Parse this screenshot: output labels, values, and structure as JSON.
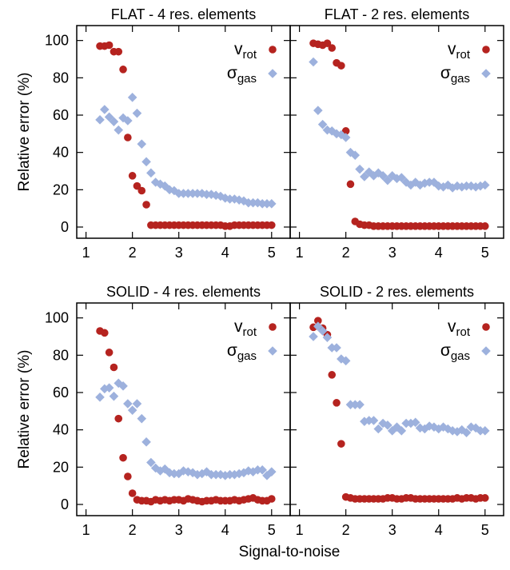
{
  "figure": {
    "xlabel": "Signal-to-noise",
    "ylabel": "Relative error (%)",
    "colors": {
      "v_rot": "#b5231f",
      "sigma_gas": "#9db1dd"
    }
  },
  "chart_data": [
    {
      "type": "scatter",
      "title": "FLAT - 4 res. elements",
      "xlabel": "Signal-to-noise",
      "ylabel": "Relative error (%)",
      "xlim": [
        0.8,
        5.4
      ],
      "ylim": [
        -6,
        108
      ],
      "xticks": [
        1,
        2,
        3,
        4,
        5
      ],
      "yticks": [
        0,
        20,
        40,
        60,
        80,
        100
      ],
      "grid": false,
      "legend": "top-right",
      "x": [
        1.3,
        1.4,
        1.5,
        1.6,
        1.7,
        1.8,
        1.9,
        2.0,
        2.1,
        2.2,
        2.3,
        2.4,
        2.5,
        2.6,
        2.7,
        2.8,
        2.9,
        3.0,
        3.1,
        3.2,
        3.3,
        3.4,
        3.5,
        3.6,
        3.7,
        3.8,
        3.9,
        4.0,
        4.1,
        4.2,
        4.3,
        4.4,
        4.5,
        4.6,
        4.7,
        4.8,
        4.9,
        5.0
      ],
      "series": [
        {
          "name": "v",
          "subscript": "rot",
          "marker": "circle",
          "values": [
            97,
            97,
            97.5,
            94,
            94,
            84.5,
            48,
            27.5,
            22,
            19.5,
            12,
            1,
            1,
            1,
            1,
            1,
            1,
            1,
            1,
            1,
            1,
            1,
            1,
            1,
            1,
            1,
            1,
            0.5,
            0.5,
            1,
            1,
            1,
            1,
            1,
            1,
            1,
            1,
            1
          ]
        },
        {
          "name": "σ",
          "subscript": "gas",
          "marker": "diamond",
          "values": [
            57.5,
            63,
            59,
            56.5,
            52,
            58.5,
            57,
            69.5,
            61,
            44.5,
            35,
            29,
            24,
            23,
            22,
            20,
            19.5,
            18,
            18,
            18,
            18,
            18,
            18,
            17.5,
            17.5,
            17,
            16.5,
            15.5,
            15,
            15,
            14.5,
            14,
            13,
            13,
            13,
            12.5,
            12.5,
            12.5
          ]
        }
      ]
    },
    {
      "type": "scatter",
      "title": "FLAT - 2 res. elements",
      "xlabel": "Signal-to-noise",
      "ylabel": "",
      "xlim": [
        0.8,
        5.4
      ],
      "ylim": [
        -6,
        108
      ],
      "xticks": [
        1,
        2,
        3,
        4,
        5
      ],
      "grid": false,
      "legend": "top-right",
      "x": [
        1.3,
        1.4,
        1.5,
        1.6,
        1.7,
        1.8,
        1.9,
        2.0,
        2.1,
        2.2,
        2.3,
        2.4,
        2.5,
        2.6,
        2.7,
        2.8,
        2.9,
        3.0,
        3.1,
        3.2,
        3.3,
        3.4,
        3.5,
        3.6,
        3.7,
        3.8,
        3.9,
        4.0,
        4.1,
        4.2,
        4.3,
        4.4,
        4.5,
        4.6,
        4.7,
        4.8,
        4.9,
        5.0
      ],
      "series": [
        {
          "name": "v",
          "subscript": "rot",
          "marker": "circle",
          "values": [
            98.5,
            98,
            97.5,
            98.5,
            96,
            88,
            86.5,
            51.5,
            23,
            3,
            1.5,
            1,
            1,
            0.5,
            0.5,
            0.5,
            0.5,
            0.5,
            0.5,
            0.5,
            0.5,
            0.5,
            0.5,
            0.5,
            0.5,
            0.5,
            0.5,
            0.5,
            0.5,
            0.5,
            0.5,
            0.5,
            0.5,
            0.5,
            0.5,
            0.5,
            0.5,
            0.5
          ]
        },
        {
          "name": "σ",
          "subscript": "gas",
          "marker": "diamond",
          "values": [
            88.5,
            62.5,
            55,
            52,
            51.5,
            50,
            49.5,
            48,
            40,
            38.5,
            31,
            27,
            29.5,
            27.5,
            29,
            27.5,
            25,
            27.5,
            26,
            26.5,
            24,
            22.5,
            24,
            22.5,
            23.5,
            24,
            24,
            22,
            21.5,
            22.5,
            21,
            22,
            21.5,
            22,
            22,
            21.5,
            22,
            22.5
          ]
        }
      ]
    },
    {
      "type": "scatter",
      "title": "SOLID - 4 res. elements",
      "xlabel": "Signal-to-noise",
      "ylabel": "Relative error (%)",
      "xlim": [
        0.8,
        5.4
      ],
      "ylim": [
        -6,
        108
      ],
      "xticks": [
        1,
        2,
        3,
        4,
        5
      ],
      "yticks": [
        0,
        20,
        40,
        60,
        80,
        100
      ],
      "grid": false,
      "legend": "top-right",
      "x": [
        1.3,
        1.4,
        1.5,
        1.6,
        1.7,
        1.8,
        1.9,
        2.0,
        2.1,
        2.2,
        2.3,
        2.4,
        2.5,
        2.6,
        2.7,
        2.8,
        2.9,
        3.0,
        3.1,
        3.2,
        3.3,
        3.4,
        3.5,
        3.6,
        3.7,
        3.8,
        3.9,
        4.0,
        4.1,
        4.2,
        4.3,
        4.4,
        4.5,
        4.6,
        4.7,
        4.8,
        4.9,
        5.0
      ],
      "series": [
        {
          "name": "v",
          "subscript": "rot",
          "marker": "circle",
          "values": [
            93,
            92,
            81.5,
            73.5,
            46,
            25,
            15,
            6,
            2.5,
            2,
            2,
            1.5,
            2.5,
            2,
            2.5,
            2,
            2.5,
            2.5,
            2,
            3,
            2.5,
            2,
            1.5,
            2,
            2,
            2.5,
            2,
            2,
            2,
            2.5,
            2,
            2.5,
            3,
            3.5,
            2.5,
            2,
            2,
            3
          ]
        },
        {
          "name": "σ",
          "subscript": "gas",
          "marker": "diamond",
          "values": [
            57.5,
            62,
            62.5,
            58,
            65,
            63.5,
            54,
            50.5,
            54,
            46,
            33.5,
            22.5,
            19.5,
            18,
            19,
            17,
            16.5,
            16.5,
            18,
            17.5,
            17,
            16,
            16.5,
            17.5,
            16,
            16,
            16,
            15.5,
            16,
            16,
            16.5,
            17,
            18,
            17.5,
            18.5,
            18.5,
            15.5,
            17.5
          ]
        }
      ]
    },
    {
      "type": "scatter",
      "title": "SOLID - 2 res. elements",
      "xlabel": "Signal-to-noise",
      "ylabel": "",
      "xlim": [
        0.8,
        5.4
      ],
      "ylim": [
        -6,
        108
      ],
      "xticks": [
        1,
        2,
        3,
        4,
        5
      ],
      "grid": false,
      "legend": "top-right",
      "x": [
        1.3,
        1.4,
        1.5,
        1.6,
        1.7,
        1.8,
        1.9,
        2.0,
        2.1,
        2.2,
        2.3,
        2.4,
        2.5,
        2.6,
        2.7,
        2.8,
        2.9,
        3.0,
        3.1,
        3.2,
        3.3,
        3.4,
        3.5,
        3.6,
        3.7,
        3.8,
        3.9,
        4.0,
        4.1,
        4.2,
        4.3,
        4.4,
        4.5,
        4.6,
        4.7,
        4.8,
        4.9,
        5.0
      ],
      "series": [
        {
          "name": "v",
          "subscript": "rot",
          "marker": "circle",
          "values": [
            95,
            98.5,
            94.5,
            91,
            69.5,
            54.5,
            32.5,
            4,
            3.5,
            3,
            3,
            3,
            3,
            3,
            3,
            3,
            3.5,
            3.5,
            3,
            3,
            3.5,
            3.5,
            3,
            3,
            3,
            3,
            3,
            3,
            3,
            3,
            3,
            3.5,
            3,
            3.5,
            3.5,
            3,
            3.5,
            3.5
          ]
        },
        {
          "name": "σ",
          "subscript": "gas",
          "marker": "diamond",
          "values": [
            90,
            95.5,
            93,
            89.5,
            84,
            84,
            78,
            77,
            53.5,
            53.5,
            53.5,
            44.5,
            45,
            45,
            40.5,
            43.5,
            42.5,
            39.5,
            41.5,
            39.5,
            43.5,
            43.5,
            44,
            41,
            40.5,
            42,
            41.5,
            40.5,
            41.5,
            40.5,
            39.5,
            39,
            40,
            38.5,
            41.5,
            41,
            39.5,
            39.5
          ]
        }
      ]
    }
  ]
}
